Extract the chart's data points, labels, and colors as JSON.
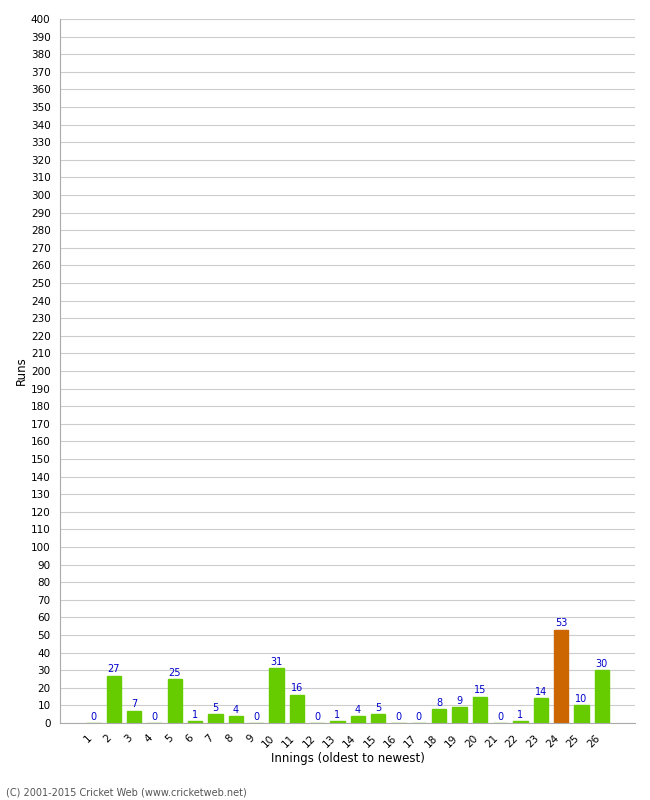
{
  "innings": [
    1,
    2,
    3,
    4,
    5,
    6,
    7,
    8,
    9,
    10,
    11,
    12,
    13,
    14,
    15,
    16,
    17,
    18,
    19,
    20,
    21,
    22,
    23,
    24,
    25,
    26
  ],
  "values": [
    0,
    27,
    7,
    0,
    25,
    1,
    5,
    4,
    0,
    31,
    16,
    0,
    1,
    4,
    5,
    0,
    0,
    8,
    9,
    15,
    0,
    1,
    14,
    53,
    10,
    30
  ],
  "bar_colors": [
    "#66cc00",
    "#66cc00",
    "#66cc00",
    "#66cc00",
    "#66cc00",
    "#66cc00",
    "#66cc00",
    "#66cc00",
    "#66cc00",
    "#66cc00",
    "#66cc00",
    "#66cc00",
    "#66cc00",
    "#66cc00",
    "#66cc00",
    "#66cc00",
    "#66cc00",
    "#66cc00",
    "#66cc00",
    "#66cc00",
    "#66cc00",
    "#66cc00",
    "#66cc00",
    "#cc6600",
    "#66cc00",
    "#66cc00"
  ],
  "xlabel": "Innings (oldest to newest)",
  "ylabel": "Runs",
  "ylim": [
    0,
    400
  ],
  "yticks": [
    0,
    10,
    20,
    30,
    40,
    50,
    60,
    70,
    80,
    90,
    100,
    110,
    120,
    130,
    140,
    150,
    160,
    170,
    180,
    190,
    200,
    210,
    220,
    230,
    240,
    250,
    260,
    270,
    280,
    290,
    300,
    310,
    320,
    330,
    340,
    350,
    360,
    370,
    380,
    390,
    400
  ],
  "label_color": "#0000cc",
  "grid_color": "#cccccc",
  "background_color": "#ffffff",
  "footer": "(C) 2001-2015 Cricket Web (www.cricketweb.net)"
}
